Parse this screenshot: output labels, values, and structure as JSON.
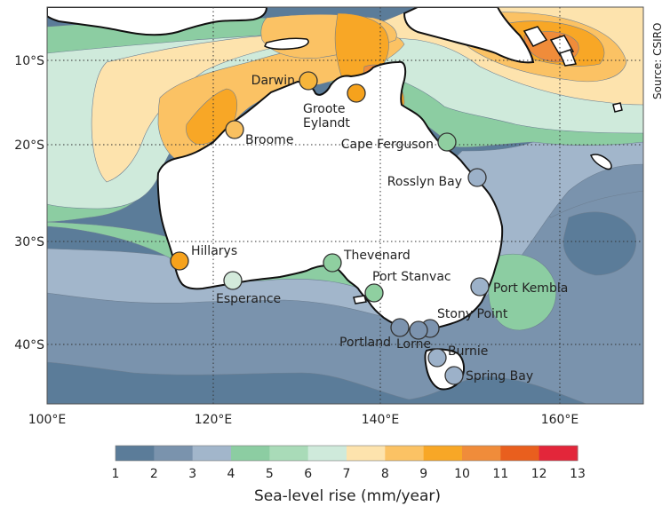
{
  "source": "Source: CSIRO",
  "lat_ticks": [
    "10°S",
    "20°S",
    "30°S",
    "40°S"
  ],
  "lon_ticks": [
    "100°E",
    "120°E",
    "140°E",
    "160°E"
  ],
  "stations": [
    {
      "name": "Darwin",
      "rate": 9.0,
      "color": "#f7b53b"
    },
    {
      "name": "Groote Eylandt",
      "label_lines": [
        "Groote",
        "Eylandt"
      ],
      "rate": 9.5,
      "color": "#f6a21c"
    },
    {
      "name": "Broome",
      "rate": 8.5,
      "color": "#f9c060"
    },
    {
      "name": "Cape Ferguson",
      "rate": 4.5,
      "color": "#8fcfa0"
    },
    {
      "name": "Rosslyn Bay",
      "rate": 2.5,
      "color": "#9cb1c9"
    },
    {
      "name": "Hillarys",
      "rate": 9.5,
      "color": "#f6a21c"
    },
    {
      "name": "Thevenard",
      "rate": 4.5,
      "color": "#8fcfa0"
    },
    {
      "name": "Esperance",
      "rate": 6.5,
      "color": "#d3eadb"
    },
    {
      "name": "Port Stanvac",
      "rate": 4.5,
      "color": "#8fcfa0"
    },
    {
      "name": "Port Kembla",
      "rate": 2.5,
      "color": "#9cb1c9"
    },
    {
      "name": "Stony Point",
      "rate": 2.0,
      "color": "#7c93ae"
    },
    {
      "name": "Portland",
      "rate": 2.0,
      "color": "#7c93ae"
    },
    {
      "name": "Lorne",
      "rate": 2.0,
      "color": "#7c93ae"
    },
    {
      "name": "Burnie",
      "rate": 2.5,
      "color": "#9cb1c9"
    },
    {
      "name": "Spring Bay",
      "rate": 2.5,
      "color": "#9cb1c9"
    }
  ],
  "legend": {
    "title": "Sea-level rise (mm/year)",
    "ticks": [
      "1",
      "2",
      "3",
      "4",
      "5",
      "6",
      "7",
      "8",
      "9",
      "10",
      "11",
      "12",
      "13"
    ],
    "colors": [
      "#5b7c99",
      "#7a93ad",
      "#a2b6cb",
      "#8ccda2",
      "#a9dbb8",
      "#cfeadb",
      "#fde3ad",
      "#fbc264",
      "#f8a726",
      "#f08c3a",
      "#e95f1e",
      "#e3263a"
    ]
  },
  "field_colors": {
    "ocean_deep": "#5b7c99",
    "ocean_mid": "#7a93ad",
    "ocean_light": "#a2b6cb",
    "green": "#8ccda2",
    "green_light": "#a9dbb8",
    "mint": "#cfeadb",
    "cream": "#fde3ad",
    "orange_light": "#fbc264",
    "orange": "#f8a726",
    "orange_dark": "#f08c3a",
    "red_orange": "#e95f1e"
  }
}
